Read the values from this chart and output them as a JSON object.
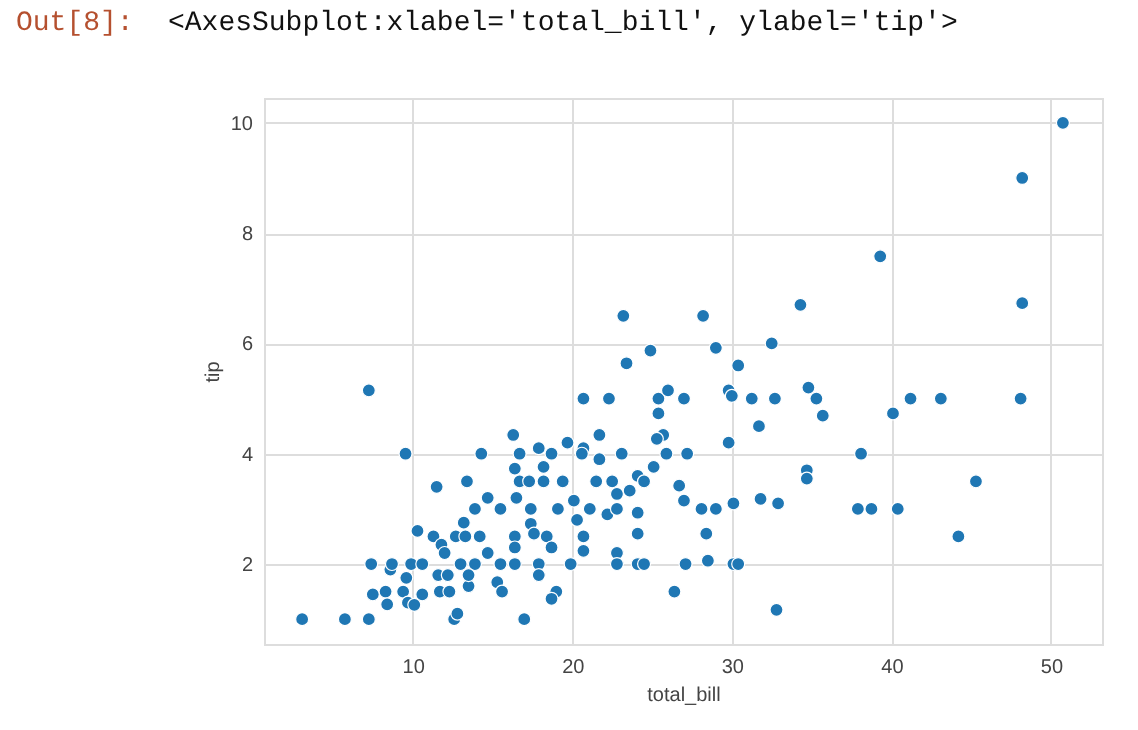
{
  "chart_data": {
    "type": "scatter",
    "annotations": [
      "Out[8]:",
      "<AxesSubplot:xlabel='total_bill', ylabel='tip'>"
    ],
    "xlabel": "total_bill",
    "ylabel": "tip",
    "xlim": [
      0.68,
      53.2
    ],
    "ylim": [
      0.55,
      10.45
    ],
    "xticks": [
      10,
      20,
      30,
      40,
      50
    ],
    "yticks": [
      2,
      4,
      6,
      8,
      10
    ],
    "grid": true,
    "marker": "circle",
    "series": [
      {
        "color": "#1f77b4",
        "x": [
          3.07,
          5.75,
          7.25,
          7.25,
          9.55,
          12.6,
          12.8,
          16.99,
          7.4,
          8.6,
          8.7,
          7.5,
          8.3,
          8.4,
          9.6,
          9.4,
          9.7,
          10.1,
          9.9,
          10.6,
          10.6,
          10.3,
          11.3,
          11.5,
          11.8,
          12.0,
          11.6,
          11.7,
          12.3,
          12.2,
          12.7,
          13.2,
          13.3,
          14.2,
          13.0,
          13.9,
          13.5,
          13.5,
          13.4,
          14.3,
          13.9,
          14.7,
          15.5,
          14.7,
          15.3,
          15.6,
          15.5,
          16.4,
          16.4,
          16.4,
          16.3,
          16.7,
          16.4,
          16.7,
          16.5,
          17.3,
          17.4,
          17.9,
          18.2,
          18.2,
          18.7,
          17.4,
          17.6,
          18.4,
          18.7,
          17.9,
          17.9,
          19.0,
          18.7,
          19.4,
          19.7,
          20.7,
          20.6,
          19.1,
          20.1,
          20.3,
          19.9,
          20.7,
          20.7,
          21.1,
          21.5,
          21.7,
          21.7,
          20.7,
          22.3,
          22.5,
          22.8,
          22.2,
          22.8,
          23.1,
          24.1,
          24.5,
          23.6,
          24.1,
          24.1,
          22.8,
          22.8,
          24.1,
          24.5,
          26.4,
          27.1,
          23.2,
          23.4,
          24.9,
          25.4,
          25.4,
          26.0,
          25.7,
          25.3,
          25.9,
          25.1,
          26.7,
          27.0,
          27.0,
          27.2,
          50.75,
          48.2,
          39.3,
          48.2,
          34.3,
          28.2,
          29.0,
          30.4,
          32.5,
          29.8,
          30.0,
          31.25,
          32.7,
          34.8,
          35.3,
          35.7,
          31.7,
          29.8,
          40.1,
          41.2,
          43.1,
          48.1,
          38.1,
          45.3,
          34.7,
          34.7,
          44.2,
          37.9,
          38.75,
          40.4,
          28.1,
          29.0,
          30.1,
          31.8,
          32.9,
          28.4,
          28.5,
          30.1,
          30.4,
          32.8
        ],
        "values": [
          1.0,
          1.0,
          1.0,
          5.15,
          4.0,
          1.0,
          1.1,
          1.0,
          2.0,
          1.9,
          2.0,
          1.45,
          1.5,
          1.27,
          1.75,
          1.5,
          1.3,
          1.26,
          2.0,
          1.45,
          2.0,
          2.6,
          2.5,
          3.4,
          2.35,
          2.2,
          1.8,
          1.5,
          1.5,
          1.8,
          2.5,
          2.75,
          2.5,
          2.5,
          2.0,
          2.0,
          1.6,
          1.8,
          3.5,
          4.0,
          3.0,
          3.2,
          3.0,
          2.2,
          1.67,
          1.5,
          2.0,
          2.0,
          2.5,
          2.3,
          4.34,
          4.0,
          3.73,
          3.5,
          3.2,
          3.5,
          3.0,
          4.1,
          3.76,
          3.5,
          4.0,
          2.73,
          2.55,
          2.5,
          2.3,
          2.0,
          1.8,
          1.5,
          1.37,
          3.5,
          4.2,
          4.1,
          4.0,
          3.0,
          3.15,
          2.8,
          2.0,
          2.24,
          2.5,
          3.0,
          3.5,
          3.9,
          4.34,
          5.0,
          5.0,
          3.5,
          3.27,
          2.9,
          3.0,
          4.0,
          3.6,
          3.5,
          3.33,
          2.93,
          2.55,
          2.2,
          2.0,
          2.0,
          2.0,
          1.5,
          2.0,
          6.5,
          5.64,
          5.87,
          5.0,
          4.73,
          5.15,
          4.34,
          4.27,
          4.0,
          3.76,
          3.42,
          3.15,
          5.0,
          4.0,
          10.0,
          9.0,
          7.58,
          6.73,
          6.7,
          6.5,
          5.92,
          5.6,
          6.0,
          5.15,
          5.05,
          5.0,
          5.0,
          5.2,
          5.0,
          4.69,
          4.5,
          4.2,
          4.73,
          5.0,
          5.0,
          5.0,
          4.0,
          3.5,
          3.7,
          3.55,
          2.5,
          3.0,
          3.0,
          3.0,
          3.0,
          3.0,
          3.1,
          3.18,
          3.1,
          2.55,
          2.06,
          2.0,
          2.0,
          1.17
        ]
      }
    ]
  }
}
